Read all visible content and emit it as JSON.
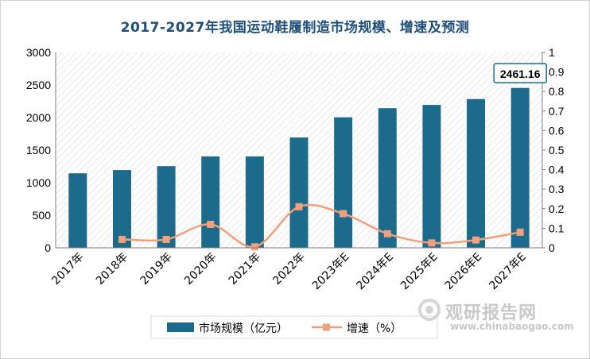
{
  "chart_data": {
    "type": "bar",
    "title": "2017-2027年我国运动鞋履制造市场规模、增速及预测",
    "categories": [
      "2017年",
      "2018年",
      "2019年",
      "2020年",
      "2021年",
      "2022年",
      "2023年E",
      "2024年E",
      "2025年E",
      "2026年E",
      "2027年E"
    ],
    "series": [
      {
        "name": "市场规模（亿元）",
        "type": "bar",
        "axis": "left",
        "color": "#1c6a8c",
        "values": [
          1150,
          1200,
          1260,
          1410,
          1410,
          1700,
          2010,
          2150,
          2200,
          2290,
          2461.16
        ]
      },
      {
        "name": "增速（%）",
        "type": "line",
        "axis": "right",
        "color": "#f0a07a",
        "values": [
          null,
          0.043,
          0.043,
          0.12,
          0.005,
          0.21,
          0.175,
          0.072,
          0.025,
          0.04,
          0.08
        ]
      }
    ],
    "ylim": [
      0,
      3000
    ],
    "y_ticks": [
      "0",
      "500",
      "1000",
      "1500",
      "2000",
      "2500",
      "3000"
    ],
    "y2lim": [
      0,
      1
    ],
    "y2_ticks": [
      "0",
      "0.1",
      "0.2",
      "0.3",
      "0.4",
      "0.5",
      "0.6",
      "0.7",
      "0.8",
      "0.9",
      "1"
    ],
    "annotation": "2461.16",
    "legend_position": "bottom",
    "grid": false
  },
  "watermark": {
    "cn": "观研报告网",
    "en": "www.chinabaogao.com"
  }
}
